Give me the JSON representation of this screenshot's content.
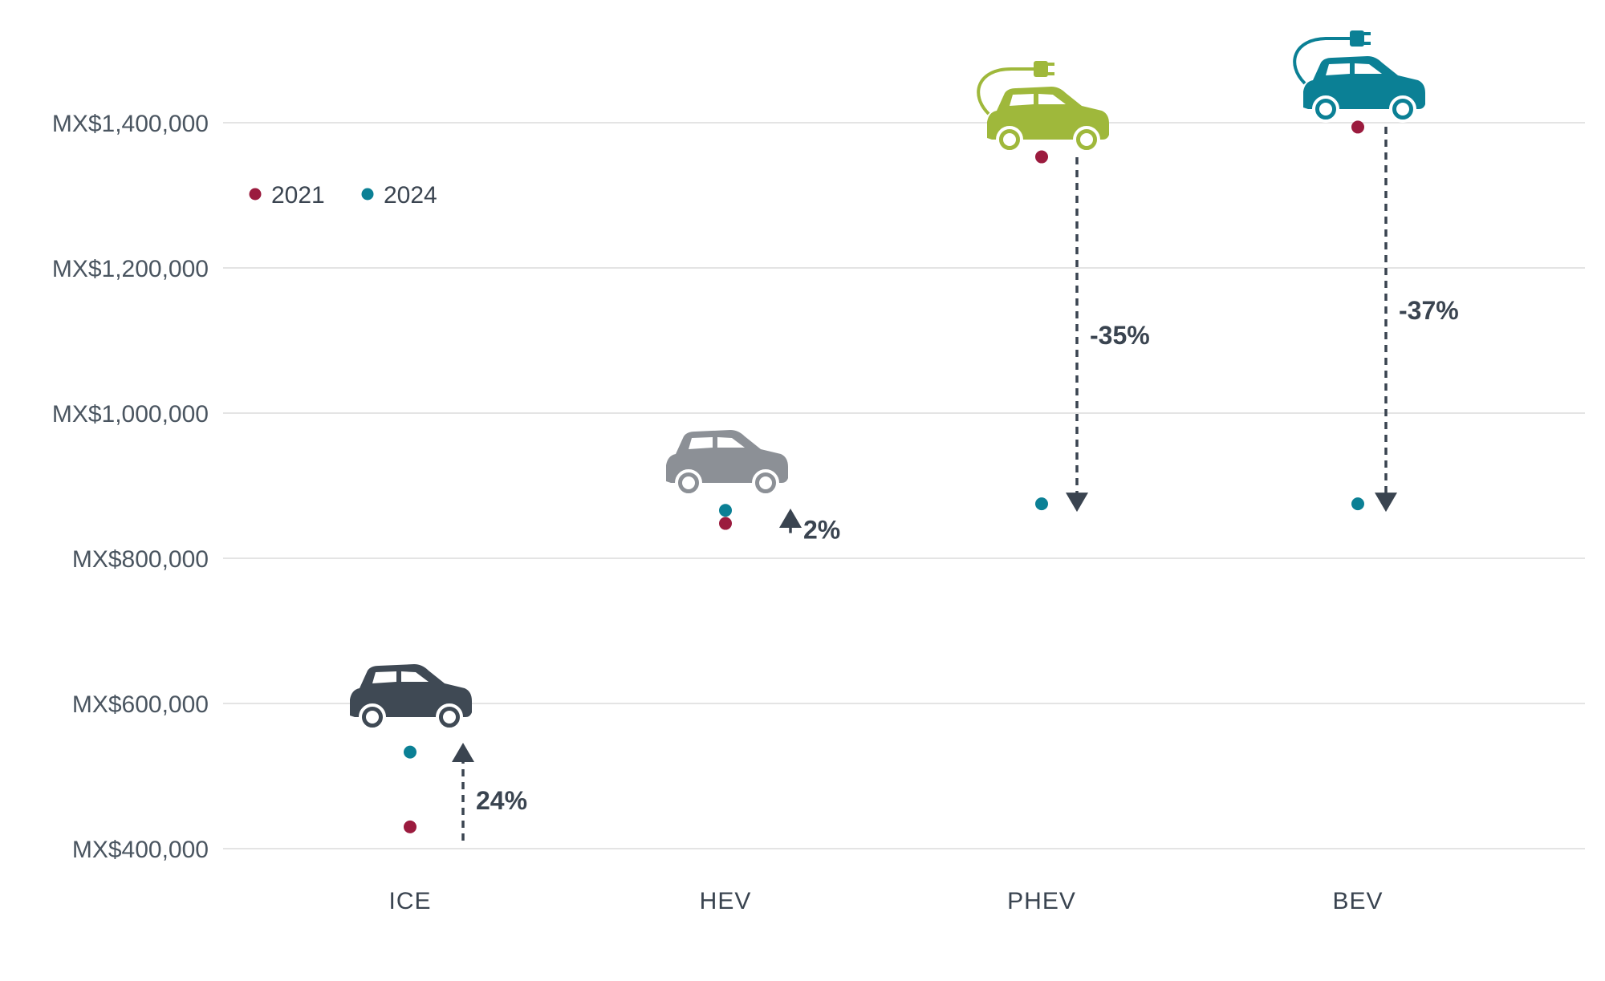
{
  "chart_data": {
    "type": "scatter",
    "categories": [
      "ICE",
      "HEV",
      "PHEV",
      "BEV"
    ],
    "series": [
      {
        "name": "2021",
        "color": "#9b1b3e",
        "values": [
          430000,
          848000,
          1353000,
          1394000
        ]
      },
      {
        "name": "2024",
        "color": "#0b8095",
        "values": [
          533000,
          866000,
          875000,
          875000
        ]
      }
    ],
    "changes": [
      "24%",
      "2%",
      "-35%",
      "-37%"
    ],
    "vehicle_icons": [
      {
        "category": "ICE",
        "icon": "car-icon",
        "color": "#3f4954"
      },
      {
        "category": "HEV",
        "icon": "car-icon",
        "color": "#8c9096"
      },
      {
        "category": "PHEV",
        "icon": "plug-in-car-icon",
        "color": "#9fb83b"
      },
      {
        "category": "BEV",
        "icon": "plug-in-car-icon",
        "color": "#0b8095"
      }
    ],
    "yticks": [
      {
        "value": 400000,
        "label": "MX$400,000"
      },
      {
        "value": 600000,
        "label": "MX$600,000"
      },
      {
        "value": 800000,
        "label": "MX$800,000"
      },
      {
        "value": 1000000,
        "label": "MX$1,000,000"
      },
      {
        "value": 1200000,
        "label": "MX$1,200,000"
      },
      {
        "value": 1400000,
        "label": "MX$1,400,000"
      }
    ],
    "ylim": [
      400000,
      1400000
    ],
    "grid": true,
    "legend_position": "top-left",
    "xlabel": "",
    "ylabel": ""
  }
}
